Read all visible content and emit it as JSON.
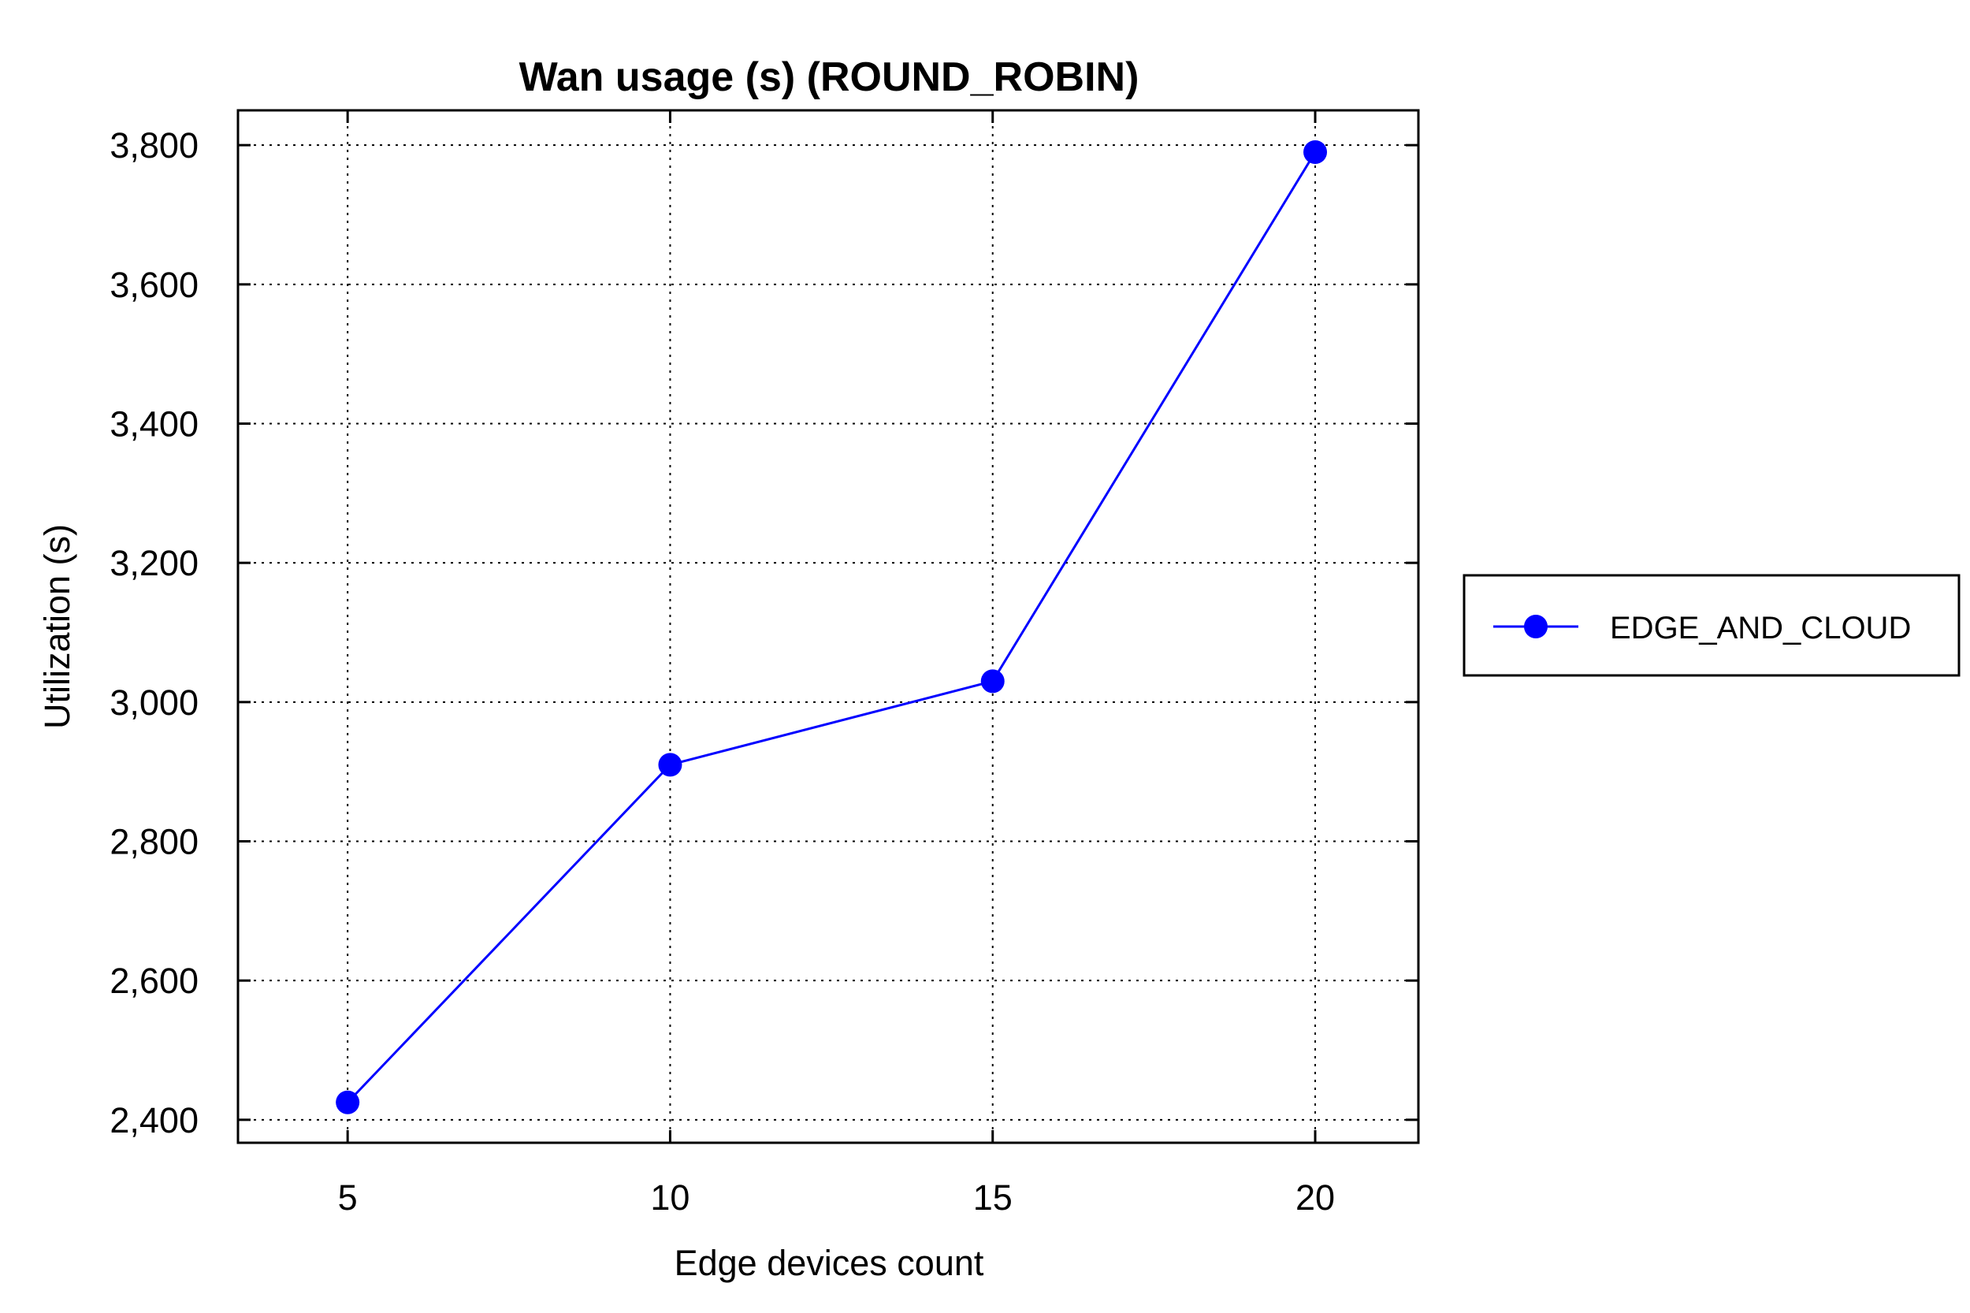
{
  "chart_data": {
    "type": "line",
    "title": "Wan usage (s) (ROUND_ROBIN)",
    "xlabel": "Edge devices count",
    "ylabel": "Utilization (s)",
    "x": [
      5,
      10,
      15,
      20
    ],
    "x_tick_labels": [
      "5",
      "10",
      "15",
      "20"
    ],
    "y_ticks": [
      2400,
      2600,
      2800,
      3000,
      3200,
      3400,
      3600,
      3800
    ],
    "y_tick_labels": [
      "2,400",
      "2,600",
      "2,800",
      "3,000",
      "3,200",
      "3,400",
      "3,600",
      "3,800"
    ],
    "xlim": [
      3.3,
      21.6
    ],
    "ylim": [
      2367,
      3850
    ],
    "grid": true,
    "legend_position": "right",
    "series": [
      {
        "name": "EDGE_AND_CLOUD",
        "color": "#0000ff",
        "marker": "circle",
        "values": [
          2425,
          2910,
          3030,
          3790
        ]
      }
    ]
  }
}
